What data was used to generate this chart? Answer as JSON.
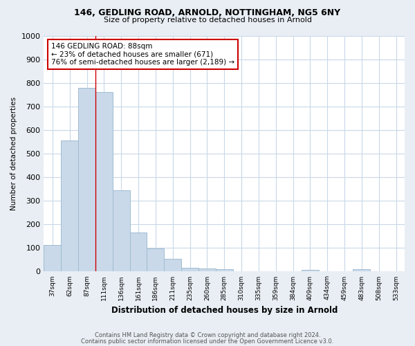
{
  "title_line1": "146, GEDLING ROAD, ARNOLD, NOTTINGHAM, NG5 6NY",
  "title_line2": "Size of property relative to detached houses in Arnold",
  "xlabel": "Distribution of detached houses by size in Arnold",
  "ylabel": "Number of detached properties",
  "categories": [
    "37sqm",
    "62sqm",
    "87sqm",
    "111sqm",
    "136sqm",
    "161sqm",
    "186sqm",
    "211sqm",
    "235sqm",
    "260sqm",
    "285sqm",
    "310sqm",
    "335sqm",
    "359sqm",
    "384sqm",
    "409sqm",
    "434sqm",
    "459sqm",
    "483sqm",
    "508sqm",
    "533sqm"
  ],
  "values": [
    112,
    556,
    779,
    762,
    343,
    165,
    97,
    54,
    15,
    13,
    9,
    0,
    0,
    0,
    0,
    8,
    0,
    0,
    9,
    0,
    0
  ],
  "bar_color": "#c9d9ea",
  "bar_edge_color": "#a0bcd0",
  "reference_line_x": 2.5,
  "reference_line_color": "#cc0000",
  "annotation_text": "146 GEDLING ROAD: 88sqm\n← 23% of detached houses are smaller (671)\n76% of semi-detached houses are larger (2,189) →",
  "annotation_box_color": "#ffffff",
  "annotation_box_edge_color": "#cc0000",
  "ylim": [
    0,
    1000
  ],
  "yticks": [
    0,
    100,
    200,
    300,
    400,
    500,
    600,
    700,
    800,
    900,
    1000
  ],
  "footer_line1": "Contains HM Land Registry data © Crown copyright and database right 2024.",
  "footer_line2": "Contains public sector information licensed under the Open Government Licence v3.0.",
  "bg_color": "#e8eef4",
  "plot_bg_color": "#ffffff",
  "grid_color": "#c8d8e8"
}
